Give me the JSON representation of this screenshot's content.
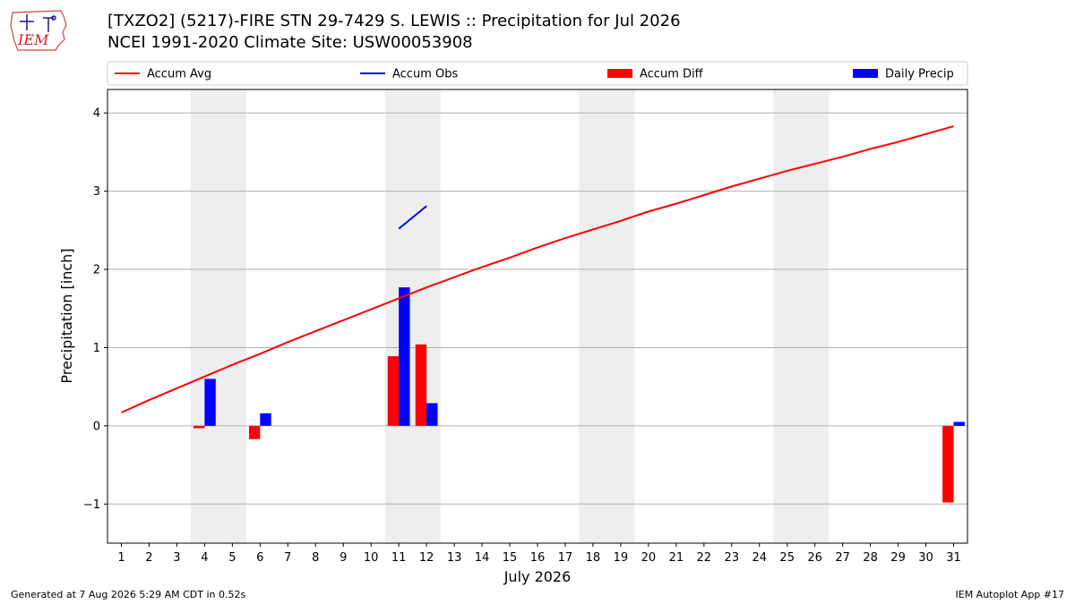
{
  "title_line1": "[TXZO2] (5217)-FIRE STN 29-7429 S. LEWIS :: Precipitation for Jul 2026",
  "title_line2": "NCEI 1991-2020 Climate Site: USW00053908",
  "footer_left": "Generated at 7 Aug 2026 5:29 AM CDT in 0.52s",
  "footer_right": "IEM Autoplot App #17",
  "logo_text": "IEM",
  "chart_data": {
    "type": "bar",
    "xlabel": "July 2026",
    "ylabel": "Precipitation [inch]",
    "xlim": [
      0.5,
      31.5
    ],
    "ylim": [
      -1.5,
      4.3
    ],
    "yticks": [
      -1,
      0,
      1,
      2,
      3,
      4
    ],
    "ytick_labels": [
      "−1",
      "0",
      "1",
      "2",
      "3",
      "4"
    ],
    "grid": "horizontal",
    "legend_placement": "top, above plot",
    "weekend_shading": [
      [
        3.5,
        5.5
      ],
      [
        10.5,
        12.5
      ],
      [
        17.5,
        19.5
      ],
      [
        24.5,
        26.5
      ]
    ],
    "days": [
      1,
      2,
      3,
      4,
      5,
      6,
      7,
      8,
      9,
      10,
      11,
      12,
      13,
      14,
      15,
      16,
      17,
      18,
      19,
      20,
      21,
      22,
      23,
      24,
      25,
      26,
      27,
      28,
      29,
      30,
      31
    ],
    "series": [
      {
        "name": "Accum Avg",
        "kind": "line",
        "color": "#ff0000",
        "x": [
          1,
          2,
          3,
          4,
          5,
          6,
          7,
          8,
          9,
          10,
          11,
          12,
          13,
          14,
          15,
          16,
          17,
          18,
          19,
          20,
          21,
          22,
          23,
          24,
          25,
          26,
          27,
          28,
          29,
          30,
          31
        ],
        "values": [
          0.17,
          0.33,
          0.48,
          0.63,
          0.78,
          0.92,
          1.07,
          1.21,
          1.35,
          1.49,
          1.63,
          1.77,
          1.9,
          2.03,
          2.15,
          2.28,
          2.4,
          2.51,
          2.62,
          2.74,
          2.84,
          2.95,
          3.06,
          3.16,
          3.26,
          3.35,
          3.44,
          3.54,
          3.63,
          3.73,
          3.83
        ]
      },
      {
        "name": "Accum Obs",
        "kind": "line",
        "color": "#0000ff",
        "x": [
          11,
          12
        ],
        "values": [
          2.52,
          2.81
        ]
      },
      {
        "name": "Accum Diff",
        "kind": "bar",
        "color": "#ff0000",
        "x": [
          4,
          6,
          11,
          12,
          31
        ],
        "values": [
          -0.03,
          -0.17,
          0.89,
          1.04,
          -0.98
        ]
      },
      {
        "name": "Daily Precip",
        "kind": "bar",
        "color": "#0000ff",
        "x": [
          4,
          6,
          11,
          12,
          31
        ],
        "values": [
          0.6,
          0.16,
          1.77,
          0.29,
          0.05
        ]
      }
    ]
  }
}
